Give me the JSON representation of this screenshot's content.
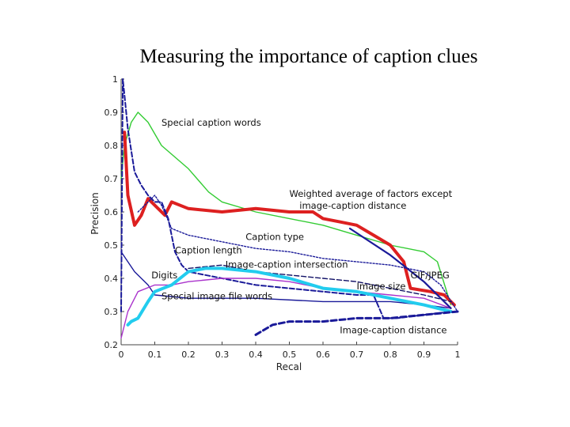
{
  "chart_data": {
    "type": "line",
    "title": "Measuring the importance of caption clues",
    "xlabel": "Recal",
    "ylabel": "Precision",
    "xlim": [
      0,
      1
    ],
    "ylim": [
      0.2,
      1
    ],
    "xticks": [
      "0",
      "0.1",
      "0.2",
      "0.3",
      "0.4",
      "0.5",
      "0.6",
      "0.7",
      "0.8",
      "0.9",
      "1"
    ],
    "yticks": [
      "0.2",
      "0.3",
      "0.4",
      "0.5",
      "0.6",
      "0.7",
      "0.8",
      "0.9",
      "1"
    ],
    "grid": false,
    "series": [
      {
        "name": "Special caption words",
        "color": "#33cc33",
        "style": "solid",
        "x": [
          0,
          0.01,
          0.03,
          0.05,
          0.08,
          0.12,
          0.2,
          0.26,
          0.3,
          0.4,
          0.5,
          0.6,
          0.7,
          0.8,
          0.9,
          0.94,
          0.98
        ],
        "y": [
          0.7,
          0.8,
          0.87,
          0.9,
          0.87,
          0.8,
          0.73,
          0.66,
          0.63,
          0.6,
          0.58,
          0.56,
          0.53,
          0.5,
          0.48,
          0.45,
          0.32
        ]
      },
      {
        "name": "Weighted average of factors except image-caption distance",
        "color": "#dd2020",
        "style": "solid",
        "x": [
          0.01,
          0.02,
          0.04,
          0.06,
          0.08,
          0.11,
          0.13,
          0.15,
          0.2,
          0.3,
          0.4,
          0.5,
          0.57,
          0.6,
          0.65,
          0.7,
          0.75,
          0.8,
          0.84,
          0.86,
          0.92,
          0.96,
          0.99
        ],
        "y": [
          0.84,
          0.65,
          0.56,
          0.59,
          0.64,
          0.61,
          0.59,
          0.63,
          0.61,
          0.6,
          0.61,
          0.6,
          0.6,
          0.58,
          0.57,
          0.56,
          0.53,
          0.5,
          0.45,
          0.37,
          0.36,
          0.35,
          0.32
        ]
      },
      {
        "name": "Caption type",
        "color": "#1a1a99",
        "style": "dotted",
        "x": [
          0.05,
          0.1,
          0.12,
          0.15,
          0.2,
          0.3,
          0.4,
          0.5,
          0.6,
          0.7,
          0.8,
          0.9,
          0.95,
          1.0
        ],
        "y": [
          0.6,
          0.65,
          0.62,
          0.55,
          0.53,
          0.51,
          0.49,
          0.48,
          0.46,
          0.45,
          0.44,
          0.42,
          0.38,
          0.3
        ]
      },
      {
        "name": "Caption length",
        "color": "#1a1a99",
        "style": "dashed",
        "x": [
          0,
          0.005,
          0.01,
          0.02,
          0.04,
          0.06,
          0.08,
          0.1,
          0.12,
          0.14,
          0.16,
          0.18,
          0.2,
          0.25,
          0.3,
          0.4,
          0.5,
          0.6,
          0.7,
          0.75,
          0.78,
          0.82,
          0.9,
          0.98
        ],
        "y": [
          0.3,
          1.0,
          0.95,
          0.85,
          0.72,
          0.68,
          0.65,
          0.63,
          0.63,
          0.58,
          0.48,
          0.44,
          0.42,
          0.41,
          0.4,
          0.38,
          0.37,
          0.36,
          0.35,
          0.35,
          0.28,
          0.28,
          0.29,
          0.3
        ]
      },
      {
        "name": "Image-caption intersection",
        "color": "#111166",
        "style": "dashed",
        "x": [
          0.2,
          0.3,
          0.35,
          0.4,
          0.5,
          0.6,
          0.7,
          0.8,
          0.9,
          0.98
        ],
        "y": [
          0.43,
          0.44,
          0.43,
          0.42,
          0.41,
          0.4,
          0.39,
          0.37,
          0.35,
          0.33
        ]
      },
      {
        "name": "Digits",
        "color": "#1a1a99",
        "style": "solid",
        "x": [
          0,
          0.04,
          0.08,
          0.1,
          0.2,
          0.4,
          0.6,
          0.8,
          0.9,
          0.98
        ],
        "y": [
          0.48,
          0.42,
          0.38,
          0.35,
          0.34,
          0.34,
          0.33,
          0.33,
          0.32,
          0.31
        ]
      },
      {
        "name": "Image size",
        "color": "#aa33cc",
        "style": "solid",
        "x": [
          0,
          0.02,
          0.05,
          0.1,
          0.15,
          0.2,
          0.3,
          0.4,
          0.5,
          0.6,
          0.7,
          0.8,
          0.9,
          0.98
        ],
        "y": [
          0.22,
          0.3,
          0.36,
          0.38,
          0.38,
          0.39,
          0.4,
          0.4,
          0.39,
          0.37,
          0.36,
          0.35,
          0.34,
          0.31
        ]
      },
      {
        "name": "GIF/JPEG",
        "color": "#1a1a99",
        "style": "solid",
        "x": [
          0.68,
          0.8,
          0.9,
          0.98
        ],
        "y": [
          0.55,
          0.47,
          0.39,
          0.31
        ]
      },
      {
        "name": "Special image file words",
        "color": "#22ccee",
        "style": "solid",
        "x": [
          0.02,
          0.03,
          0.05,
          0.08,
          0.1,
          0.15,
          0.2,
          0.25,
          0.3,
          0.4,
          0.5,
          0.6,
          0.7,
          0.8,
          0.9,
          0.98
        ],
        "y": [
          0.26,
          0.27,
          0.28,
          0.33,
          0.36,
          0.38,
          0.42,
          0.43,
          0.43,
          0.42,
          0.4,
          0.37,
          0.36,
          0.34,
          0.32,
          0.3
        ]
      },
      {
        "name": "Image-caption distance",
        "color": "#1a1a99",
        "style": "dashed",
        "x": [
          0.4,
          0.45,
          0.5,
          0.55,
          0.6,
          0.7,
          0.8,
          0.9,
          1.0
        ],
        "y": [
          0.23,
          0.26,
          0.27,
          0.27,
          0.27,
          0.28,
          0.28,
          0.29,
          0.3
        ]
      }
    ],
    "annotations": [
      {
        "text": "Special caption words",
        "x": 0.12,
        "y": 0.86
      },
      {
        "text": "Weighted average of factors except",
        "x": 0.5,
        "y": 0.645
      },
      {
        "text": "image-caption distance",
        "x": 0.53,
        "y": 0.61
      },
      {
        "text": "Caption type",
        "x": 0.37,
        "y": 0.515
      },
      {
        "text": "Caption length",
        "x": 0.16,
        "y": 0.475
      },
      {
        "text": "Image-caption intersection",
        "x": 0.31,
        "y": 0.432
      },
      {
        "text": "Digits",
        "x": 0.09,
        "y": 0.4
      },
      {
        "text": "GIF/JPEG",
        "x": 0.86,
        "y": 0.4
      },
      {
        "text": "Image size",
        "x": 0.7,
        "y": 0.367
      },
      {
        "text": "Special image file words",
        "x": 0.12,
        "y": 0.337
      },
      {
        "text": "Image-caption distance",
        "x": 0.65,
        "y": 0.235
      }
    ]
  }
}
